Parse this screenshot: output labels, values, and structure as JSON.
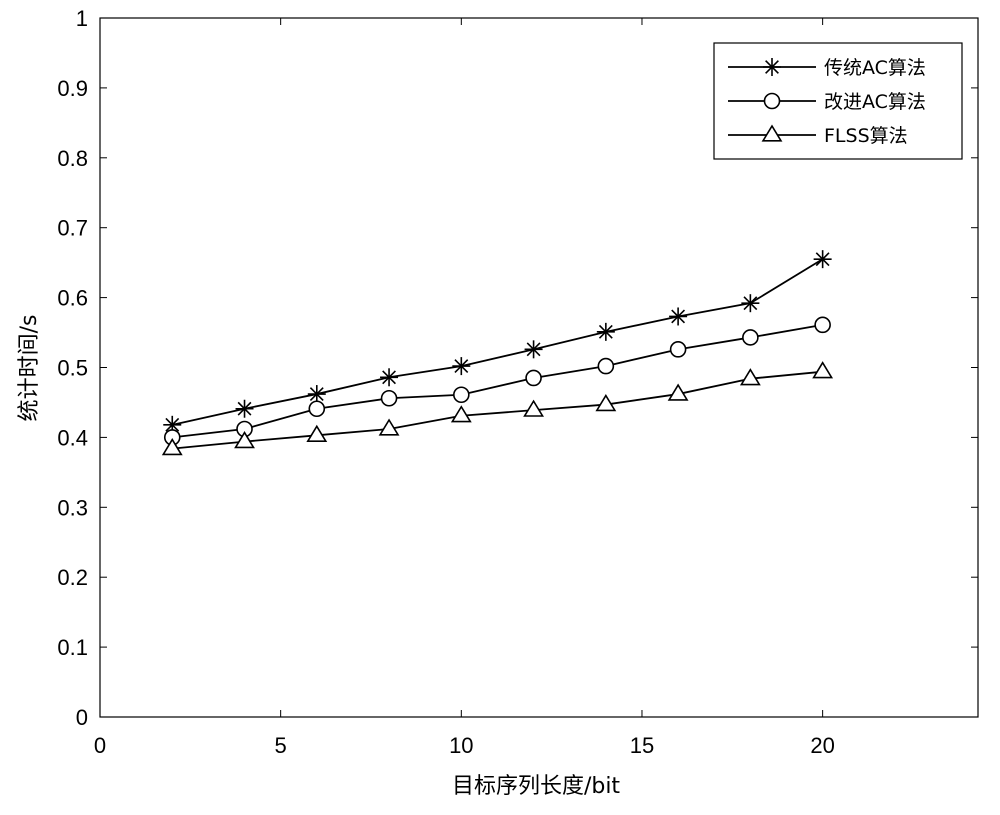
{
  "chart_data": {
    "type": "line",
    "title": "",
    "xlabel": "目标序列长度/bit",
    "ylabel": "统计时间/s",
    "xlim": [
      0,
      24.3
    ],
    "ylim": [
      0,
      1
    ],
    "xticks": [
      0,
      5,
      10,
      15,
      20
    ],
    "xtick_labels": [
      "0",
      "5",
      "10",
      "15",
      "20"
    ],
    "yticks": [
      0,
      0.1,
      0.2,
      0.3,
      0.4,
      0.5,
      0.6,
      0.7,
      0.8,
      0.9,
      1
    ],
    "ytick_labels": [
      "0",
      "0.1",
      "0.2",
      "0.3",
      "0.4",
      "0.5",
      "0.6",
      "0.7",
      "0.8",
      "0.9",
      "1"
    ],
    "grid": false,
    "legend_position": "top-right",
    "x": [
      2,
      4,
      6,
      8,
      10,
      12,
      14,
      16,
      18,
      20
    ],
    "series": [
      {
        "name": "传统AC算法",
        "marker": "asterisk",
        "color": "#000000",
        "values": [
          0.418,
          0.441,
          0.462,
          0.486,
          0.502,
          0.526,
          0.551,
          0.573,
          0.592,
          0.655
        ]
      },
      {
        "name": "改进AC算法",
        "marker": "circle",
        "color": "#000000",
        "values": [
          0.4,
          0.412,
          0.441,
          0.456,
          0.461,
          0.485,
          0.502,
          0.526,
          0.543,
          0.561
        ]
      },
      {
        "name": "FLSS算法",
        "marker": "triangle",
        "color": "#000000",
        "values": [
          0.384,
          0.394,
          0.403,
          0.412,
          0.431,
          0.439,
          0.447,
          0.462,
          0.484,
          0.494
        ]
      }
    ]
  }
}
